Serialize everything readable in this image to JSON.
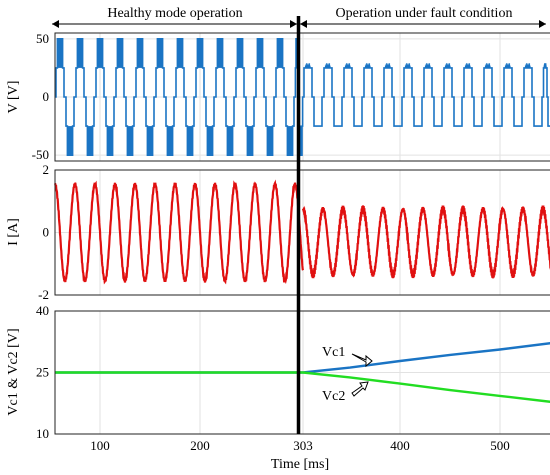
{
  "header": {
    "left_label": "Healthy mode operation",
    "right_label": "Operation under fault condition"
  },
  "chart_data": [
    {
      "type": "line",
      "panel": "voltage",
      "ylabel": "V [V]",
      "ylim": [
        -55,
        55
      ],
      "yticks": [
        -50,
        0,
        50
      ],
      "xlim": [
        55,
        552
      ],
      "grid": true,
      "color": "#1a74c4",
      "description_series": [
        {
          "segment": "healthy",
          "x_range": [
            55,
            303
          ],
          "levels": [
            -50,
            -25,
            0,
            25,
            50
          ],
          "switching_period_ms": 20
        },
        {
          "segment": "fault",
          "x_range": [
            303,
            552
          ],
          "levels": [
            -25,
            0,
            25
          ],
          "switching_period_ms": 20
        }
      ]
    },
    {
      "type": "line",
      "panel": "current",
      "ylabel": "I [A]",
      "ylim": [
        -2,
        2
      ],
      "yticks": [
        -2,
        0,
        2
      ],
      "xlim": [
        55,
        552
      ],
      "grid": true,
      "color": "#e01010",
      "series": [
        {
          "segment": "healthy",
          "x_range": [
            55,
            303
          ],
          "amplitude": 1.55,
          "period_ms": 20
        },
        {
          "segment": "fault",
          "x_range": [
            303,
            552
          ],
          "amplitude": 1.05,
          "offset": -0.3,
          "period_ms": 20
        }
      ]
    },
    {
      "type": "line",
      "panel": "capacitor",
      "ylabel": "Vc1 & Vc2 [V]",
      "xlabel": "Time [ms]",
      "ylim": [
        10,
        40
      ],
      "yticks": [
        10,
        25,
        40
      ],
      "xlim": [
        55,
        552
      ],
      "xticks": [
        100,
        200,
        303,
        400,
        500
      ],
      "grid": true,
      "series": [
        {
          "name": "Vc1",
          "color": "#1a74c4",
          "points": [
            [
              55,
              25
            ],
            [
              303,
              25
            ],
            [
              350,
              26.2
            ],
            [
              400,
              27.8
            ],
            [
              450,
              29.3
            ],
            [
              500,
              30.6
            ],
            [
              552,
              32.2
            ]
          ]
        },
        {
          "name": "Vc2",
          "color": "#22dd22",
          "points": [
            [
              55,
              25
            ],
            [
              303,
              25
            ],
            [
              350,
              23.8
            ],
            [
              400,
              22.3
            ],
            [
              450,
              20.7
            ],
            [
              500,
              19.3
            ],
            [
              552,
              17.8
            ]
          ]
        }
      ]
    }
  ]
}
